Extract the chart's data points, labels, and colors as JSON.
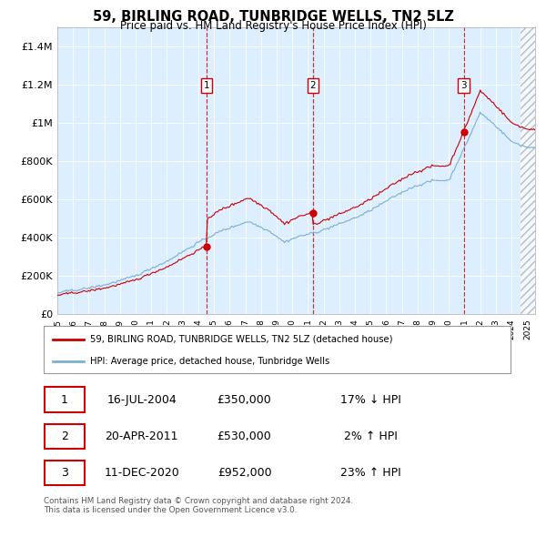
{
  "title": "59, BIRLING ROAD, TUNBRIDGE WELLS, TN2 5LZ",
  "subtitle": "Price paid vs. HM Land Registry's House Price Index (HPI)",
  "ylim": [
    0,
    1500000
  ],
  "yticks": [
    0,
    200000,
    400000,
    600000,
    800000,
    1000000,
    1200000,
    1400000
  ],
  "ytick_labels": [
    "£0",
    "£200K",
    "£400K",
    "£600K",
    "£800K",
    "£1M",
    "£1.2M",
    "£1.4M"
  ],
  "xlim_start": 1995.0,
  "xlim_end": 2025.5,
  "sale_dates": [
    2004.54,
    2011.31,
    2020.95
  ],
  "sale_prices": [
    350000,
    530000,
    952000
  ],
  "sale_labels": [
    "1",
    "2",
    "3"
  ],
  "red_line_color": "#cc0000",
  "blue_line_color": "#7ab0d4",
  "background_color": "#ddeeff",
  "legend_entry1": "59, BIRLING ROAD, TUNBRIDGE WELLS, TN2 5LZ (detached house)",
  "legend_entry2": "HPI: Average price, detached house, Tunbridge Wells",
  "table_rows": [
    [
      "1",
      "16-JUL-2004",
      "£350,000",
      "17% ↓ HPI"
    ],
    [
      "2",
      "20-APR-2011",
      "£530,000",
      "2% ↑ HPI"
    ],
    [
      "3",
      "11-DEC-2020",
      "£952,000",
      "23% ↑ HPI"
    ]
  ],
  "footnote": "Contains HM Land Registry data © Crown copyright and database right 2024.\nThis data is licensed under the Open Government Licence v3.0."
}
